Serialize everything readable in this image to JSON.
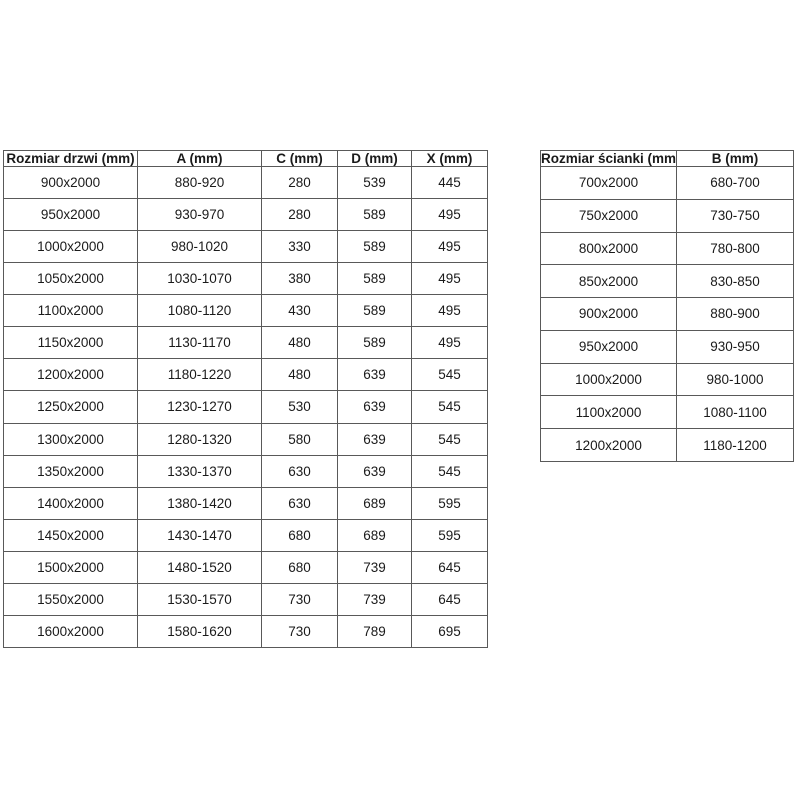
{
  "colors": {
    "background": "#ffffff",
    "border": "#595959",
    "text": "#1a1a1a"
  },
  "tables": {
    "doors": {
      "name": "door-sizes",
      "headers": [
        "Rozmiar drzwi (mm)",
        "A (mm)",
        "C (mm)",
        "D (mm)",
        "X (mm)"
      ],
      "rows": [
        [
          "900x2000",
          "880-920",
          "280",
          "539",
          "445"
        ],
        [
          "950x2000",
          "930-970",
          "280",
          "589",
          "495"
        ],
        [
          "1000x2000",
          "980-1020",
          "330",
          "589",
          "495"
        ],
        [
          "1050x2000",
          "1030-1070",
          "380",
          "589",
          "495"
        ],
        [
          "1100x2000",
          "1080-1120",
          "430",
          "589",
          "495"
        ],
        [
          "1150x2000",
          "1130-1170",
          "480",
          "589",
          "495"
        ],
        [
          "1200x2000",
          "1180-1220",
          "480",
          "639",
          "545"
        ],
        [
          "1250x2000",
          "1230-1270",
          "530",
          "639",
          "545"
        ],
        [
          "1300x2000",
          "1280-1320",
          "580",
          "639",
          "545"
        ],
        [
          "1350x2000",
          "1330-1370",
          "630",
          "639",
          "545"
        ],
        [
          "1400x2000",
          "1380-1420",
          "630",
          "689",
          "595"
        ],
        [
          "1450x2000",
          "1430-1470",
          "680",
          "689",
          "595"
        ],
        [
          "1500x2000",
          "1480-1520",
          "680",
          "739",
          "645"
        ],
        [
          "1550x2000",
          "1530-1570",
          "730",
          "739",
          "645"
        ],
        [
          "1600x2000",
          "1580-1620",
          "730",
          "789",
          "695"
        ]
      ]
    },
    "walls": {
      "name": "wall-panel-sizes",
      "headers": [
        "Rozmiar ścianki (mm)",
        "B (mm)"
      ],
      "rows": [
        [
          "700x2000",
          "680-700"
        ],
        [
          "750x2000",
          "730-750"
        ],
        [
          "800x2000",
          "780-800"
        ],
        [
          "850x2000",
          "830-850"
        ],
        [
          "900x2000",
          "880-900"
        ],
        [
          "950x2000",
          "930-950"
        ],
        [
          "1000x2000",
          "980-1000"
        ],
        [
          "1100x2000",
          "1080-1100"
        ],
        [
          "1200x2000",
          "1180-1200"
        ]
      ]
    }
  }
}
